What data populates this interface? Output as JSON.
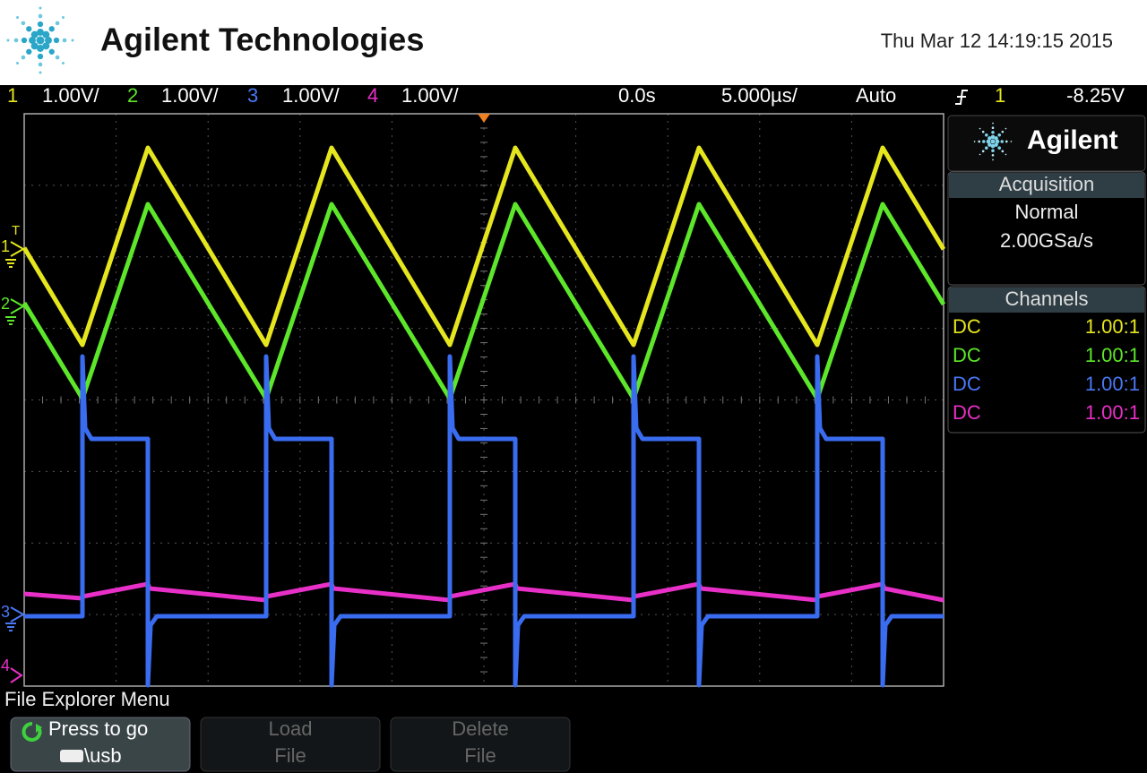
{
  "header": {
    "brand": "Agilent Technologies",
    "datetime": "Thu Mar 12 14:19:15 2015"
  },
  "status_bar": {
    "channels": [
      {
        "number": "1",
        "scale": "1.00V/"
      },
      {
        "number": "2",
        "scale": "1.00V/"
      },
      {
        "number": "3",
        "scale": "1.00V/"
      },
      {
        "number": "4",
        "scale": "1.00V/"
      }
    ],
    "time_offset": "0.0s",
    "time_scale": "5.000µs/",
    "trigger_mode": "Auto",
    "trigger_source": "1",
    "trigger_level": "-8.25V"
  },
  "channel_markers": {
    "trigger": "T",
    "channels": [
      "1",
      "2",
      "3",
      "4"
    ]
  },
  "side_panel": {
    "logo": "Agilent",
    "acquisition": {
      "title": "Acquisition",
      "mode": "Normal",
      "rate": "2.00GSa/s"
    },
    "channels": {
      "title": "Channels",
      "rows": [
        {
          "coupling": "DC",
          "probe": "1.00:1"
        },
        {
          "coupling": "DC",
          "probe": "1.00:1"
        },
        {
          "coupling": "DC",
          "probe": "1.00:1"
        },
        {
          "coupling": "DC",
          "probe": "1.00:1"
        }
      ]
    }
  },
  "menu": {
    "title": "File Explorer Menu",
    "buttons": [
      {
        "lines": [
          "Press to go",
          "\\usb"
        ]
      },
      {
        "lines": [
          "Load",
          "File"
        ]
      },
      {
        "lines": [
          "Delete",
          "File"
        ]
      }
    ]
  }
}
